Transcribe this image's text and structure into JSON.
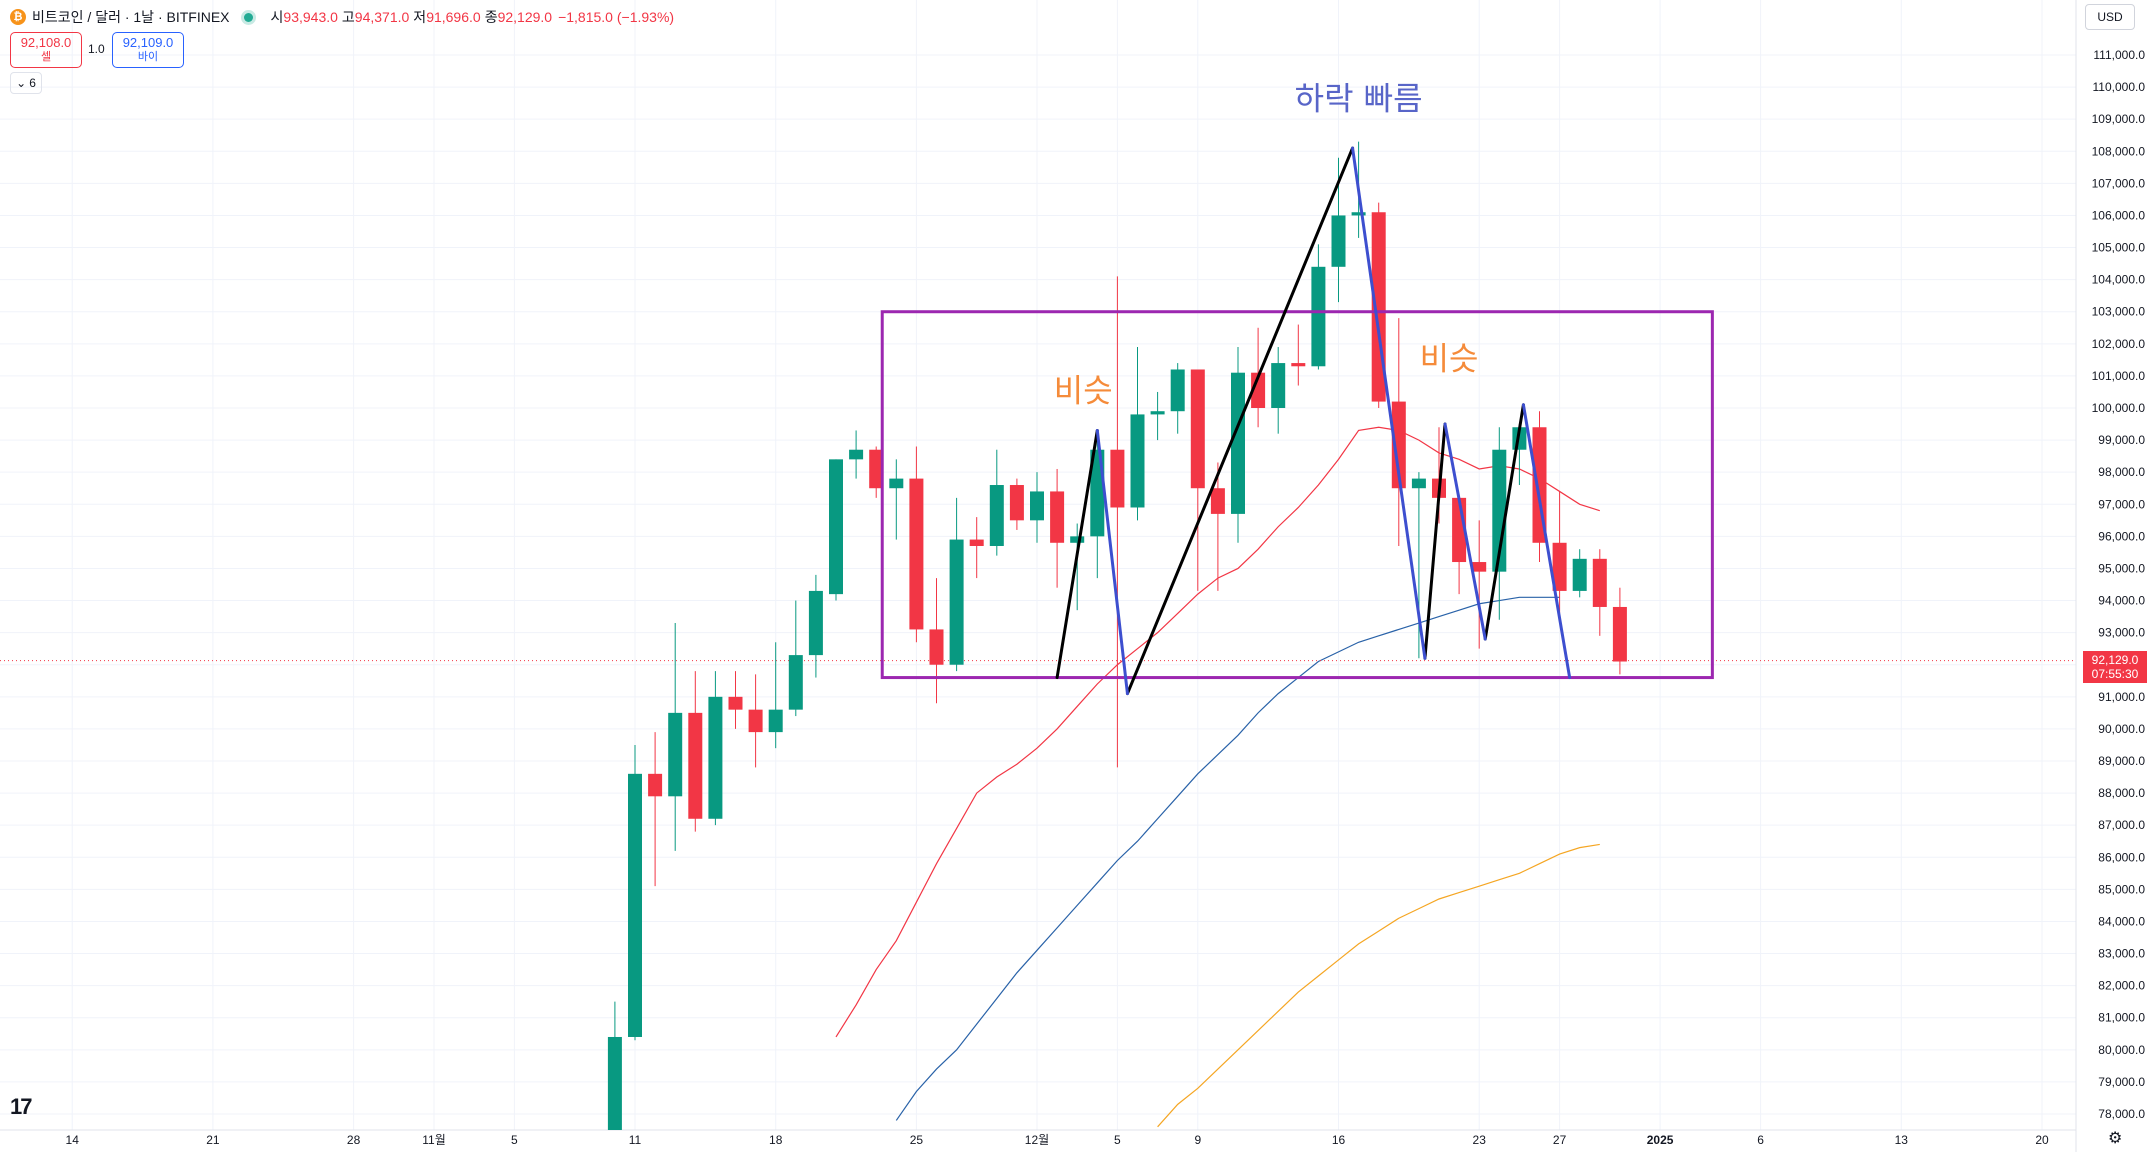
{
  "header": {
    "symbol_title": "비트코인 / 달러 · 1날 · BITFINEX",
    "coin_glyph": "₿",
    "ohlc": [
      {
        "label": "시",
        "value": "93,943.0"
      },
      {
        "label": "고",
        "value": "94,371.0"
      },
      {
        "label": "저",
        "value": "91,696.0"
      },
      {
        "label": "종",
        "value": "92,129.0"
      }
    ],
    "change": "−1,815.0 (−1.93%)"
  },
  "trade": {
    "sell_price": "92,108.0",
    "sell_label": "셀",
    "spread": "1.0",
    "buy_price": "92,109.0",
    "buy_label": "바이",
    "indicator_count": "6",
    "currency": "USD"
  },
  "last_price": {
    "value": "92,129.0",
    "countdown": "07:55:30",
    "price": 92129
  },
  "logo_text": "17",
  "gear_glyph": "⚙",
  "colors": {
    "up": "#089981",
    "down": "#f23645",
    "ma_red": "#f23645",
    "ma_blue": "#2962a8",
    "ma_orange": "#f5a623",
    "box": "#9c27b0",
    "trend_black": "#000000",
    "trend_blue": "#3d4fcf",
    "annot_orange": "#f58b3a",
    "annot_blue": "#5865c8"
  },
  "chart_data": {
    "type": "candlestick",
    "ylim": [
      77500,
      112500
    ],
    "y_ticks": [
      78000,
      79000,
      80000,
      81000,
      82000,
      83000,
      84000,
      85000,
      86000,
      87000,
      88000,
      89000,
      90000,
      91000,
      92000,
      93000,
      94000,
      95000,
      96000,
      97000,
      98000,
      99000,
      100000,
      101000,
      102000,
      103000,
      104000,
      105000,
      106000,
      107000,
      108000,
      109000,
      110000,
      111000
    ],
    "y_tick_labels": [
      "78,000.0",
      "79,000.0",
      "80,000.0",
      "81,000.0",
      "82,000.0",
      "83,000.0",
      "84,000.0",
      "85,000.0",
      "86,000.0",
      "87,000.0",
      "88,000.0",
      "89,000.0",
      "90,000.0",
      "91,000.0",
      "92,000.0",
      "93,000.0",
      "94,000.0",
      "95,000.0",
      "96,000.0",
      "97,000.0",
      "98,000.0",
      "99,000.0",
      "100,000.0",
      "101,000.0",
      "102,000.0",
      "103,000.0",
      "104,000.0",
      "105,000.0",
      "106,000.0",
      "107,000.0",
      "108,000.0",
      "109,000.0",
      "110,000.0",
      "111,000.0"
    ],
    "x_ticks": [
      {
        "label": "14",
        "day": -27
      },
      {
        "label": "21",
        "day": -20
      },
      {
        "label": "28",
        "day": -13
      },
      {
        "label": "11월",
        "day": -9
      },
      {
        "label": "5",
        "day": -5
      },
      {
        "label": "11",
        "day": 1
      },
      {
        "label": "18",
        "day": 8
      },
      {
        "label": "25",
        "day": 15
      },
      {
        "label": "12월",
        "day": 21
      },
      {
        "label": "5",
        "day": 25
      },
      {
        "label": "9",
        "day": 29
      },
      {
        "label": "16",
        "day": 36
      },
      {
        "label": "23",
        "day": 43
      },
      {
        "label": "27",
        "day": 47
      },
      {
        "label": "2025",
        "day": 52
      },
      {
        "label": "6",
        "day": 57
      },
      {
        "label": "13",
        "day": 64
      },
      {
        "label": "20",
        "day": 71
      }
    ],
    "candles": [
      {
        "d": "2024-11-10",
        "o": 76800,
        "h": 81500,
        "l": 76500,
        "c": 80400
      },
      {
        "d": "2024-11-11",
        "o": 80400,
        "h": 89500,
        "l": 80300,
        "c": 88600
      },
      {
        "d": "2024-11-12",
        "o": 88600,
        "h": 89900,
        "l": 85100,
        "c": 87900
      },
      {
        "d": "2024-11-13",
        "o": 87900,
        "h": 93300,
        "l": 86200,
        "c": 90500
      },
      {
        "d": "2024-11-14",
        "o": 90500,
        "h": 91800,
        "l": 86800,
        "c": 87200
      },
      {
        "d": "2024-11-15",
        "o": 87200,
        "h": 91800,
        "l": 87000,
        "c": 91000
      },
      {
        "d": "2024-11-16",
        "o": 91000,
        "h": 91800,
        "l": 90000,
        "c": 90600
      },
      {
        "d": "2024-11-17",
        "o": 90600,
        "h": 91700,
        "l": 88800,
        "c": 89900
      },
      {
        "d": "2024-11-18",
        "o": 89900,
        "h": 92700,
        "l": 89400,
        "c": 90600
      },
      {
        "d": "2024-11-19",
        "o": 90600,
        "h": 94000,
        "l": 90400,
        "c": 92300
      },
      {
        "d": "2024-11-20",
        "o": 92300,
        "h": 94800,
        "l": 91600,
        "c": 94300
      },
      {
        "d": "2024-11-21",
        "o": 94200,
        "h": 98400,
        "l": 94000,
        "c": 98400
      },
      {
        "d": "2024-11-22",
        "o": 98400,
        "h": 99300,
        "l": 97800,
        "c": 98700
      },
      {
        "d": "2024-11-23",
        "o": 98700,
        "h": 98800,
        "l": 97200,
        "c": 97500
      },
      {
        "d": "2024-11-24",
        "o": 97500,
        "h": 98400,
        "l": 95900,
        "c": 97800
      },
      {
        "d": "2024-11-25",
        "o": 97800,
        "h": 98800,
        "l": 92700,
        "c": 93100
      },
      {
        "d": "2024-11-26",
        "o": 93100,
        "h": 94700,
        "l": 90800,
        "c": 92000
      },
      {
        "d": "2024-11-27",
        "o": 92000,
        "h": 97200,
        "l": 91800,
        "c": 95900
      },
      {
        "d": "2024-11-28",
        "o": 95900,
        "h": 96600,
        "l": 94700,
        "c": 95700
      },
      {
        "d": "2024-11-29",
        "o": 95700,
        "h": 98700,
        "l": 95400,
        "c": 97600
      },
      {
        "d": "2024-11-30",
        "o": 97600,
        "h": 97800,
        "l": 96200,
        "c": 96500
      },
      {
        "d": "2024-12-01",
        "o": 96500,
        "h": 98000,
        "l": 95800,
        "c": 97400
      },
      {
        "d": "2024-12-02",
        "o": 97400,
        "h": 98100,
        "l": 94400,
        "c": 95800
      },
      {
        "d": "2024-12-03",
        "o": 95800,
        "h": 96400,
        "l": 93700,
        "c": 96000
      },
      {
        "d": "2024-12-04",
        "o": 96000,
        "h": 99000,
        "l": 94700,
        "c": 98700
      },
      {
        "d": "2024-12-05",
        "o": 98700,
        "h": 104100,
        "l": 88800,
        "c": 96900
      },
      {
        "d": "2024-12-06",
        "o": 96900,
        "h": 101900,
        "l": 96500,
        "c": 99800
      },
      {
        "d": "2024-12-07",
        "o": 99800,
        "h": 100500,
        "l": 99000,
        "c": 99900
      },
      {
        "d": "2024-12-08",
        "o": 99900,
        "h": 101400,
        "l": 99200,
        "c": 101200
      },
      {
        "d": "2024-12-09",
        "o": 101200,
        "h": 101200,
        "l": 94300,
        "c": 97500
      },
      {
        "d": "2024-12-10",
        "o": 97500,
        "h": 98300,
        "l": 94300,
        "c": 96700
      },
      {
        "d": "2024-12-11",
        "o": 96700,
        "h": 101900,
        "l": 95800,
        "c": 101100
      },
      {
        "d": "2024-12-12",
        "o": 101100,
        "h": 102500,
        "l": 99400,
        "c": 100000
      },
      {
        "d": "2024-12-13",
        "o": 100000,
        "h": 101900,
        "l": 99200,
        "c": 101400
      },
      {
        "d": "2024-12-14",
        "o": 101400,
        "h": 102600,
        "l": 100700,
        "c": 101300
      },
      {
        "d": "2024-12-15",
        "o": 101300,
        "h": 105100,
        "l": 101200,
        "c": 104400
      },
      {
        "d": "2024-12-16",
        "o": 104400,
        "h": 107800,
        "l": 103300,
        "c": 106000
      },
      {
        "d": "2024-12-17",
        "o": 106000,
        "h": 108300,
        "l": 105300,
        "c": 106100
      },
      {
        "d": "2024-12-18",
        "o": 106100,
        "h": 106400,
        "l": 100000,
        "c": 100200
      },
      {
        "d": "2024-12-19",
        "o": 100200,
        "h": 102800,
        "l": 95700,
        "c": 97500
      },
      {
        "d": "2024-12-20",
        "o": 97500,
        "h": 98000,
        "l": 92200,
        "c": 97800
      },
      {
        "d": "2024-12-21",
        "o": 97800,
        "h": 99400,
        "l": 96400,
        "c": 97200
      },
      {
        "d": "2024-12-22",
        "o": 97200,
        "h": 97300,
        "l": 94200,
        "c": 95200
      },
      {
        "d": "2024-12-23",
        "o": 95200,
        "h": 96500,
        "l": 92500,
        "c": 94900
      },
      {
        "d": "2024-12-24",
        "o": 94900,
        "h": 99400,
        "l": 93400,
        "c": 98700
      },
      {
        "d": "2024-12-25",
        "o": 98700,
        "h": 99500,
        "l": 97600,
        "c": 99400
      },
      {
        "d": "2024-12-26",
        "o": 99400,
        "h": 99900,
        "l": 95200,
        "c": 95800
      },
      {
        "d": "2024-12-27",
        "o": 95800,
        "h": 97400,
        "l": 93600,
        "c": 94300
      },
      {
        "d": "2024-12-28",
        "o": 94300,
        "h": 95600,
        "l": 94100,
        "c": 95300
      },
      {
        "d": "2024-12-29",
        "o": 95300,
        "h": 95600,
        "l": 92900,
        "c": 93800
      },
      {
        "d": "2024-12-30",
        "o": 93800,
        "h": 94400,
        "l": 91700,
        "c": 92100
      }
    ],
    "ma_red": [
      [
        11,
        80400
      ],
      [
        12,
        81400
      ],
      [
        13,
        82500
      ],
      [
        14,
        83400
      ],
      [
        15,
        84600
      ],
      [
        16,
        85800
      ],
      [
        17,
        86900
      ],
      [
        18,
        88000
      ],
      [
        19,
        88500
      ],
      [
        20,
        88900
      ],
      [
        21,
        89400
      ],
      [
        22,
        90000
      ],
      [
        23,
        90700
      ],
      [
        24,
        91400
      ],
      [
        25,
        92000
      ],
      [
        26,
        92500
      ],
      [
        27,
        93000
      ],
      [
        28,
        93600
      ],
      [
        29,
        94200
      ],
      [
        30,
        94700
      ],
      [
        31,
        95000
      ],
      [
        32,
        95600
      ],
      [
        33,
        96300
      ],
      [
        34,
        96900
      ],
      [
        35,
        97600
      ],
      [
        36,
        98400
      ],
      [
        37,
        99300
      ],
      [
        38,
        99400
      ],
      [
        39,
        99300
      ],
      [
        40,
        99000
      ],
      [
        41,
        98600
      ],
      [
        42,
        98400
      ],
      [
        43,
        98100
      ],
      [
        44,
        98200
      ],
      [
        45,
        98100
      ],
      [
        46,
        97800
      ],
      [
        47,
        97400
      ],
      [
        48,
        97000
      ],
      [
        49,
        96800
      ]
    ],
    "ma_blue": [
      [
        14,
        77800
      ],
      [
        15,
        78700
      ],
      [
        16,
        79400
      ],
      [
        17,
        80000
      ],
      [
        18,
        80800
      ],
      [
        19,
        81600
      ],
      [
        20,
        82400
      ],
      [
        21,
        83100
      ],
      [
        22,
        83800
      ],
      [
        23,
        84500
      ],
      [
        24,
        85200
      ],
      [
        25,
        85900
      ],
      [
        26,
        86500
      ],
      [
        27,
        87200
      ],
      [
        28,
        87900
      ],
      [
        29,
        88600
      ],
      [
        30,
        89200
      ],
      [
        31,
        89800
      ],
      [
        32,
        90500
      ],
      [
        33,
        91100
      ],
      [
        34,
        91600
      ],
      [
        35,
        92100
      ],
      [
        36,
        92400
      ],
      [
        37,
        92700
      ],
      [
        38,
        92900
      ],
      [
        39,
        93100
      ],
      [
        40,
        93300
      ],
      [
        41,
        93500
      ],
      [
        42,
        93700
      ],
      [
        43,
        93900
      ],
      [
        44,
        94000
      ],
      [
        45,
        94100
      ],
      [
        46,
        94100
      ],
      [
        47,
        94100
      ]
    ],
    "ma_orange": [
      [
        27,
        77600
      ],
      [
        28,
        78300
      ],
      [
        29,
        78800
      ],
      [
        30,
        79400
      ],
      [
        31,
        80000
      ],
      [
        32,
        80600
      ],
      [
        33,
        81200
      ],
      [
        34,
        81800
      ],
      [
        35,
        82300
      ],
      [
        36,
        82800
      ],
      [
        37,
        83300
      ],
      [
        38,
        83700
      ],
      [
        39,
        84100
      ],
      [
        40,
        84400
      ],
      [
        41,
        84700
      ],
      [
        42,
        84900
      ],
      [
        43,
        85100
      ],
      [
        44,
        85300
      ],
      [
        45,
        85500
      ],
      [
        46,
        85800
      ],
      [
        47,
        86100
      ],
      [
        48,
        86300
      ],
      [
        49,
        86400
      ]
    ],
    "range_box": {
      "x1": 13.3,
      "x2": 54.6,
      "y_top": 103000,
      "y_bottom": 91600
    },
    "trend_black": [
      [
        [
          22.0,
          91600
        ],
        [
          24.0,
          99300
        ]
      ],
      [
        [
          25.5,
          91100
        ],
        [
          36.7,
          108100
        ]
      ],
      [
        [
          40.3,
          92200
        ],
        [
          41.3,
          99500
        ]
      ],
      [
        [
          43.3,
          92800
        ],
        [
          45.2,
          100100
        ]
      ]
    ],
    "trend_blue": [
      [
        [
          24.0,
          99300
        ],
        [
          25.5,
          91100
        ]
      ],
      [
        [
          36.7,
          108100
        ],
        [
          40.3,
          92200
        ]
      ],
      [
        [
          41.3,
          99500
        ],
        [
          43.3,
          92800
        ]
      ],
      [
        [
          45.2,
          100100
        ],
        [
          47.5,
          91600
        ]
      ]
    ],
    "annotations": [
      {
        "text": "비슷",
        "x": 23.3,
        "y": 100200,
        "color": "annot_orange"
      },
      {
        "text": "비슷",
        "x": 41.5,
        "y": 101200,
        "color": "annot_orange"
      },
      {
        "text": "하락 빠름",
        "x": 37.0,
        "y": 109300,
        "color": "annot_blue"
      }
    ],
    "last_price_line": 92129
  }
}
